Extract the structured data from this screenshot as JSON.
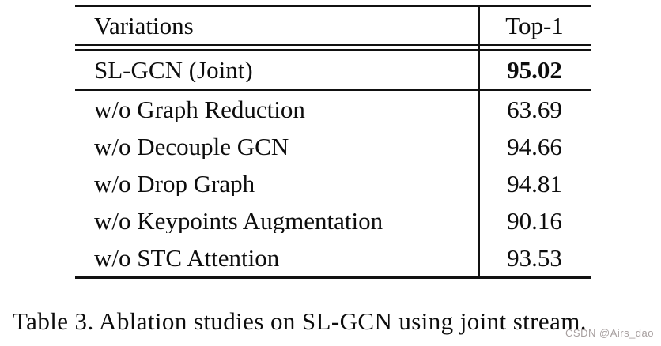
{
  "table": {
    "columns": [
      "Variations",
      "Top-1"
    ],
    "baseline": {
      "label": "SL-GCN (Joint)",
      "value": "95.02"
    },
    "rows": [
      {
        "label": "w/o Graph Reduction",
        "value": "63.69"
      },
      {
        "label": "w/o Decouple GCN",
        "value": "94.66"
      },
      {
        "label": "w/o Drop Graph",
        "value": "94.81"
      },
      {
        "label": "w/o Keypoints Augmentation",
        "value": "90.16"
      },
      {
        "label": "w/o STC Attention",
        "value": "93.53"
      }
    ]
  },
  "chart_data": {
    "type": "table",
    "title": "Table 3. Ablation studies on SL-GCN using joint stream.",
    "categories": [
      "SL-GCN (Joint)",
      "w/o Graph Reduction",
      "w/o Decouple GCN",
      "w/o Drop Graph",
      "w/o Keypoints Augmentation",
      "w/o STC Attention"
    ],
    "values": [
      95.02,
      63.69,
      94.66,
      94.81,
      90.16,
      93.53
    ],
    "xlabel": "Variations",
    "ylabel": "Top-1"
  },
  "caption": "Table 3. Ablation studies on SL-GCN using joint stream.",
  "watermark": "CSDN @Airs_dao",
  "colors": {
    "text": "#000000",
    "rule": "#111111",
    "background": "#ffffff",
    "watermark": "#a79f9f"
  }
}
